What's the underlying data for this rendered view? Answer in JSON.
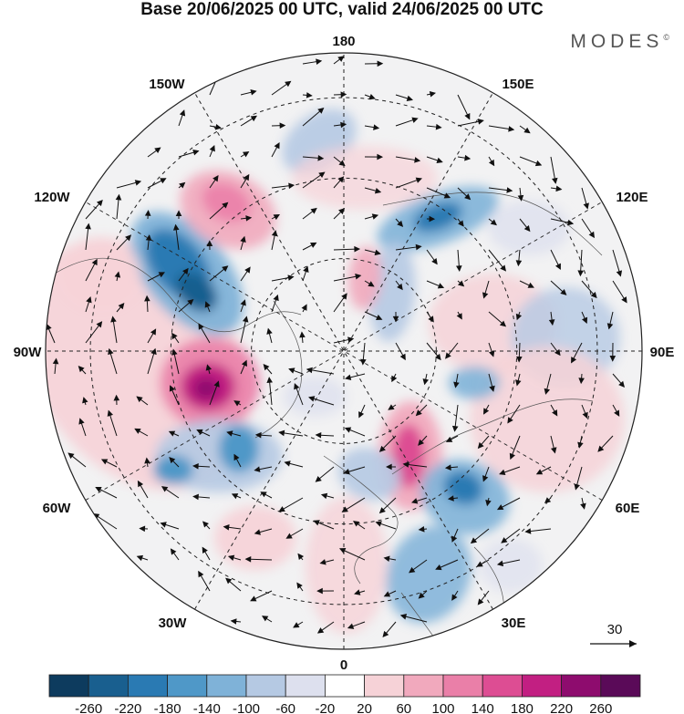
{
  "title": "Base 20/06/2025 00 UTC, valid 24/06/2025 00 UTC",
  "brand": "MODES",
  "brand_mark": "©",
  "longitude_labels": {
    "top": "180",
    "bottom": "0",
    "left": "90W",
    "right": "90E",
    "upper_left_1": "150W",
    "upper_left_2": "120W",
    "upper_right_1": "150E",
    "upper_right_2": "120E",
    "lower_left_1": "60W",
    "lower_left_2": "30W",
    "lower_right_1": "60E",
    "lower_right_2": "30E"
  },
  "reference_vector": {
    "label": "30"
  },
  "colorbar": {
    "colors": [
      "#0d3b5e",
      "#195f8f",
      "#2a7ab3",
      "#4f98c8",
      "#7fb2d8",
      "#b5c9e3",
      "#dde0ee",
      "#ffffff",
      "#f6d2d7",
      "#f1a9bd",
      "#ea7fa8",
      "#dd4d93",
      "#c21f82",
      "#8e0c6e",
      "#5a0a58"
    ],
    "tick_labels": [
      "-260",
      "-220",
      "-180",
      "-140",
      "-100",
      "-60",
      "-20",
      "20",
      "60",
      "100",
      "140",
      "180",
      "220",
      "260"
    ]
  }
}
